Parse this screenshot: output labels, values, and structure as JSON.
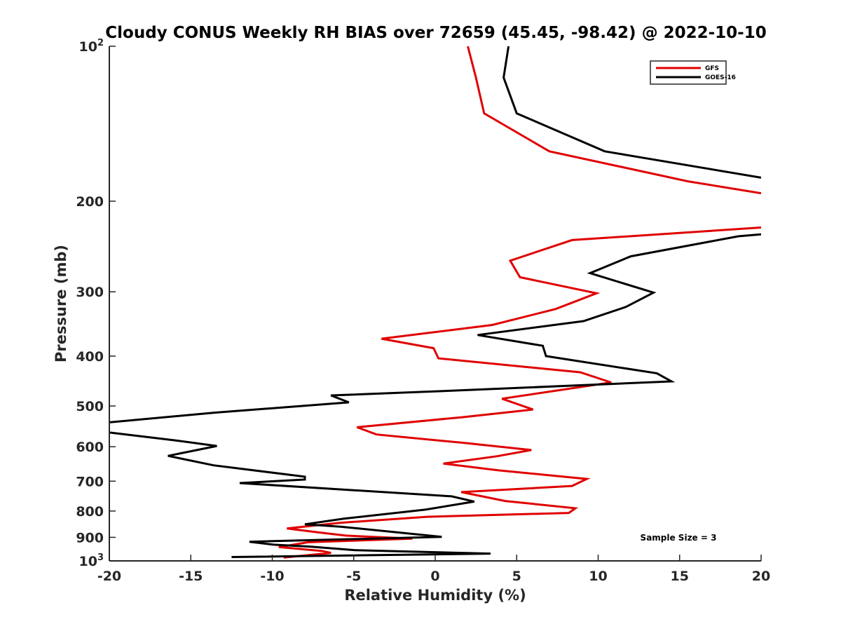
{
  "chart_data": {
    "type": "line",
    "title": "Cloudy CONUS Weekly RH BIAS over 72659 (45.45, -98.42) @ 2022-10-10",
    "xlabel": "Relative Humidity (%)",
    "ylabel": "Pressure (mb)",
    "xlim": [
      -20,
      20
    ],
    "ylim": [
      100,
      1000
    ],
    "yscale": "log",
    "y_reversed": true,
    "grid": false,
    "legend_placement": "top-right",
    "note": "Sample Size = 3",
    "x_ticks": [
      "-20",
      "-15",
      "-10",
      "-5",
      "0",
      "5",
      "10",
      "15",
      "20"
    ],
    "y_ticks": [
      {
        "value": 100,
        "base": "10",
        "exp": "2"
      },
      {
        "value": 200,
        "label": "200"
      },
      {
        "value": 300,
        "label": "300"
      },
      {
        "value": 400,
        "label": "400"
      },
      {
        "value": 500,
        "label": "500"
      },
      {
        "value": 600,
        "label": "600"
      },
      {
        "value": 700,
        "label": "700"
      },
      {
        "value": 800,
        "label": "800"
      },
      {
        "value": 900,
        "label": "900"
      },
      {
        "value": 1000,
        "base": "10",
        "exp": "3"
      }
    ],
    "series": [
      {
        "name": "GFS",
        "color": "#e00000",
        "points": [
          [
            2.0,
            100
          ],
          [
            2.5,
            115
          ],
          [
            3.0,
            135
          ],
          [
            7.0,
            160
          ],
          [
            15.5,
            183
          ],
          [
            20.0,
            193
          ],
          [
            null,
            null
          ],
          [
            20.0,
            225
          ],
          [
            8.4,
            238
          ],
          [
            4.6,
            261
          ],
          [
            5.2,
            281
          ],
          [
            9.9,
            302
          ],
          [
            7.4,
            324
          ],
          [
            3.5,
            348
          ],
          [
            -3.3,
            370
          ],
          [
            -0.1,
            386
          ],
          [
            0.2,
            404
          ],
          [
            8.9,
            430
          ],
          [
            10.8,
            450
          ],
          [
            4.1,
            484
          ],
          [
            6.0,
            508
          ],
          [
            1.6,
            526
          ],
          [
            -4.8,
            550
          ],
          [
            -3.6,
            568
          ],
          [
            1.8,
            590
          ],
          [
            5.9,
            609
          ],
          [
            3.8,
            626
          ],
          [
            0.5,
            647
          ],
          [
            3.9,
            667
          ],
          [
            9.3,
            693
          ],
          [
            8.4,
            715
          ],
          [
            1.6,
            735
          ],
          [
            4.3,
            765
          ],
          [
            8.6,
            790
          ],
          [
            8.2,
            807
          ],
          [
            -0.5,
            821
          ],
          [
            -5.8,
            843
          ],
          [
            -9.1,
            865
          ],
          [
            -7.2,
            880
          ],
          [
            -5.5,
            893
          ],
          [
            -1.4,
            905
          ],
          [
            -7.8,
            920
          ],
          [
            -9.6,
            940
          ],
          [
            -7.0,
            956
          ],
          [
            -6.4,
            965
          ],
          [
            -9.3,
            985
          ]
        ]
      },
      {
        "name": "GOES-16",
        "color": "#000000",
        "points": [
          [
            4.5,
            100
          ],
          [
            4.2,
            115
          ],
          [
            5.0,
            135
          ],
          [
            10.4,
            160
          ],
          [
            20.0,
            180
          ],
          [
            null,
            null
          ],
          [
            20.0,
            232
          ],
          [
            18.6,
            234
          ],
          [
            12.0,
            256
          ],
          [
            9.5,
            276
          ],
          [
            13.4,
            301
          ],
          [
            11.7,
            321
          ],
          [
            9.1,
            342
          ],
          [
            2.6,
            364
          ],
          [
            6.6,
            382
          ],
          [
            6.8,
            400
          ],
          [
            13.6,
            432
          ],
          [
            14.5,
            448
          ],
          [
            1.0,
            467
          ],
          [
            -6.4,
            477
          ],
          [
            -5.3,
            492
          ],
          [
            -13.5,
            515
          ],
          [
            -20.0,
            538
          ],
          [
            null,
            null
          ],
          [
            -20.0,
            563
          ],
          [
            -16.0,
            583
          ],
          [
            -13.4,
            598
          ],
          [
            -16.4,
            625
          ],
          [
            -13.6,
            652
          ],
          [
            -8.0,
            686
          ],
          [
            -8.0,
            695
          ],
          [
            -12.0,
            706
          ],
          [
            1.0,
            749
          ],
          [
            2.4,
            767
          ],
          [
            -0.6,
            795
          ],
          [
            -5.6,
            828
          ],
          [
            -8.0,
            849
          ],
          [
            -5.8,
            858
          ],
          [
            0.4,
            898
          ],
          [
            -11.4,
            918
          ],
          [
            -9.9,
            930
          ],
          [
            -7.7,
            938
          ],
          [
            -4.9,
            953
          ],
          [
            3.4,
            968
          ],
          [
            -12.5,
            983
          ]
        ]
      }
    ]
  }
}
